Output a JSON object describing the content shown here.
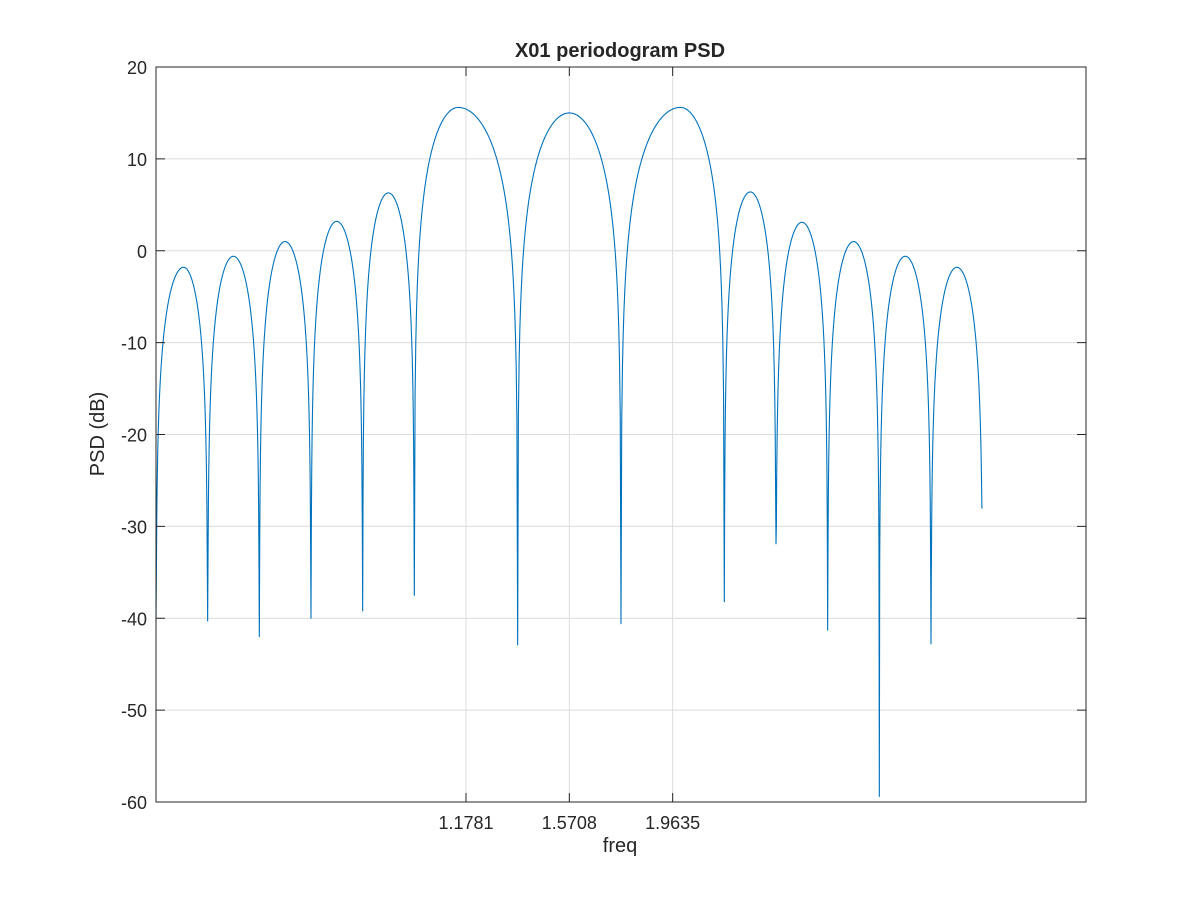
{
  "chart_data": {
    "type": "line",
    "title": "X01 periodogram PSD",
    "xlabel": "freq",
    "ylabel": "PSD (dB)",
    "xlim": [
      0.0,
      3.5343
    ],
    "ylim": [
      -60,
      20
    ],
    "xticks": [
      1.1781,
      1.5708,
      1.9635
    ],
    "xtick_labels": [
      "1.1781",
      "1.5708",
      "1.9635"
    ],
    "yticks": [
      -60,
      -50,
      -40,
      -30,
      -20,
      -10,
      0,
      10,
      20
    ],
    "ytick_labels": [
      "-60",
      "-50",
      "-40",
      "-30",
      "-20",
      "-10",
      "0",
      "10",
      "20"
    ],
    "grid": true,
    "legend": "none",
    "series": [
      {
        "color": "#0072BD",
        "x_end": 3.1416,
        "start_value": -40,
        "end_value": -28,
        "lobes": [
          {
            "peak_x": 0.1047,
            "peak_y": -1.8,
            "null_x": 0.1963,
            "null_y": -40.3
          },
          {
            "peak_x": 0.2941,
            "peak_y": -0.6,
            "null_x": 0.3927,
            "null_y": -42.0
          },
          {
            "peak_x": 0.4904,
            "peak_y": 1.0,
            "null_x": 0.589,
            "null_y": -40.0
          },
          {
            "peak_x": 0.6867,
            "peak_y": 3.2,
            "null_x": 0.7854,
            "null_y": -39.2
          },
          {
            "peak_x": 0.883,
            "peak_y": 6.3,
            "null_x": 0.9817,
            "null_y": -37.5
          },
          {
            "peak_x": 1.1487,
            "peak_y": 15.6,
            "null_x": 1.3744,
            "null_y": -42.9
          },
          {
            "peak_x": 1.5708,
            "peak_y": 15.0,
            "null_x": 1.7671,
            "null_y": -40.6
          },
          {
            "peak_x": 1.9929,
            "peak_y": 15.6,
            "null_x": 2.1598,
            "null_y": -38.2
          },
          {
            "peak_x": 2.2586,
            "peak_y": 6.4,
            "null_x": 2.3562,
            "null_y": -31.9
          },
          {
            "peak_x": 2.4549,
            "peak_y": 3.1,
            "null_x": 2.5525,
            "null_y": -41.3
          },
          {
            "peak_x": 2.6512,
            "peak_y": 1.0,
            "null_x": 2.7489,
            "null_y": -59.4
          },
          {
            "peak_x": 2.8475,
            "peak_y": -0.6,
            "null_x": 2.9452,
            "null_y": -42.8
          },
          {
            "peak_x": 3.0438,
            "peak_y": -1.8,
            "null_x": 3.1416,
            "null_y": -28.0
          }
        ]
      }
    ]
  }
}
